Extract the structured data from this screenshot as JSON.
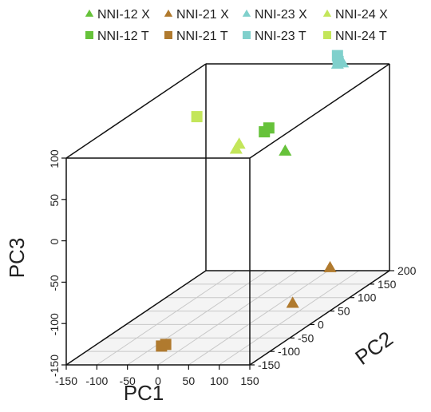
{
  "chart_data": {
    "type": "scatter",
    "projection": "3d",
    "title": "",
    "axes": {
      "x": {
        "label": "PC1",
        "range": [
          -150,
          150
        ],
        "ticks": [
          -150,
          -100,
          -50,
          0,
          50,
          100,
          150
        ],
        "tick_labels": [
          "-150",
          "-100",
          "-50",
          "0",
          "50",
          "100",
          "150"
        ]
      },
      "y": {
        "label": "PC2",
        "range": [
          -150,
          200
        ],
        "ticks": [
          -150,
          -100,
          -50,
          0,
          50,
          100,
          150,
          200
        ],
        "tick_labels": [
          "-150",
          "-100",
          "-50",
          "0",
          "50",
          "100",
          "150",
          "200"
        ]
      },
      "z": {
        "label": "PC3",
        "range": [
          -150,
          100
        ],
        "ticks": [
          -150,
          -100,
          -50,
          0,
          50,
          100
        ],
        "tick_labels": [
          "-150",
          "-100",
          "-50",
          "0",
          "50",
          "100"
        ]
      }
    },
    "floor_grid": true,
    "legend_position": "top",
    "series": [
      {
        "name": "NNI-12 X",
        "marker": "triangle",
        "color": "#66c23a",
        "points": [
          [
            110,
            0,
            60
          ]
        ]
      },
      {
        "name": "NNI-21 X",
        "marker": "triangle",
        "color": "#b07a2e",
        "points": [
          [
            105,
            120,
            -120
          ],
          [
            70,
            80,
            -150
          ]
        ]
      },
      {
        "name": "NNI-23 X",
        "marker": "triangle",
        "color": "#80d0cc",
        "points": [
          [
            65,
            200,
            100
          ],
          [
            70,
            205,
            100
          ]
        ]
      },
      {
        "name": "NNI-24 X",
        "marker": "triangle",
        "color": "#c3e65a",
        "points": [
          [
            38,
            -5,
            70
          ],
          [
            33,
            -5,
            64
          ]
        ]
      },
      {
        "name": "NNI-12 T",
        "marker": "square",
        "color": "#66c23a",
        "points": [
          [
            74,
            3,
            82
          ],
          [
            80,
            5,
            86
          ]
        ]
      },
      {
        "name": "NNI-21 T",
        "marker": "square",
        "color": "#b07a2e",
        "points": [
          [
            -40,
            -80,
            -150
          ],
          [
            -37,
            -74,
            -150
          ]
        ]
      },
      {
        "name": "NNI-23 T",
        "marker": "square",
        "color": "#80d0cc",
        "points": [
          [
            65,
            200,
            110
          ],
          [
            66,
            200,
            103
          ]
        ]
      },
      {
        "name": "NNI-24 T",
        "marker": "square",
        "color": "#c3e65a",
        "points": [
          [
            -37,
            4,
            100
          ]
        ]
      }
    ]
  }
}
